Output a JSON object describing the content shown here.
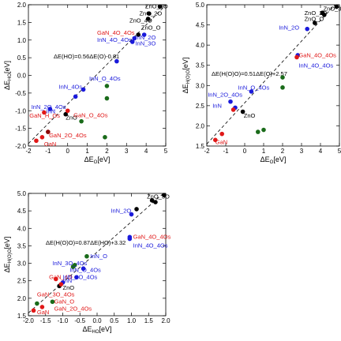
{
  "chart_data": [
    {
      "type": "scatter",
      "xlabel": "ΔE",
      "xlabel_sub": "O",
      "xlabel_unit": "[eV]",
      "ylabel": "ΔE",
      "ylabel_sub": "HO",
      "ylabel_unit": "[eV]",
      "xlim": [
        -2,
        5
      ],
      "ylim": [
        -2.0,
        2.0
      ],
      "xticks": [
        "-2",
        "-1",
        "0",
        "1",
        "2",
        "3",
        "4",
        "5"
      ],
      "yticks": [
        "-2.0",
        "-1.5",
        "-1.0",
        "-0.5",
        "0.0",
        "0.5",
        "1.0",
        "1.5",
        "2.0"
      ],
      "xtick_values": [
        -2,
        -1,
        0,
        1,
        2,
        3,
        4,
        5
      ],
      "ytick_values": [
        -2.0,
        -1.5,
        -1.0,
        -0.5,
        0.0,
        0.5,
        1.0,
        1.5,
        2.0
      ],
      "grid": false,
      "fit": {
        "slope": 0.56,
        "intercept": -0.81,
        "label": "ΔE(HO)=0.56ΔE(O)-0.81"
      },
      "points": [
        {
          "x": 4.7,
          "y": 1.95,
          "c": "#000000"
        },
        {
          "x": 4.1,
          "y": 1.6,
          "c": "#000000"
        },
        {
          "x": 4.15,
          "y": 1.75,
          "c": "#000000"
        },
        {
          "x": 3.6,
          "y": 1.15,
          "c": "#000000"
        },
        {
          "x": -0.1,
          "y": -1.1,
          "c": "#000000"
        },
        {
          "x": 3.3,
          "y": 0.95,
          "c": "#1a1adb"
        },
        {
          "x": 3.4,
          "y": 1.05,
          "c": "#1a1adb"
        },
        {
          "x": 3.9,
          "y": 1.15,
          "c": "#1a1adb"
        },
        {
          "x": 2.5,
          "y": 0.4,
          "c": "#1a1adb"
        },
        {
          "x": 0.8,
          "y": -0.4,
          "c": "#1a1adb"
        },
        {
          "x": 0.4,
          "y": -0.6,
          "c": "#1a1adb"
        },
        {
          "x": -0.9,
          "y": -0.95,
          "c": "#1a1adb"
        },
        {
          "x": 2.0,
          "y": -0.3,
          "c": "#1a6b1a"
        },
        {
          "x": 2.0,
          "y": -0.65,
          "c": "#1a6b1a"
        },
        {
          "x": 0.7,
          "y": -1.3,
          "c": "#1a6b1a"
        },
        {
          "x": 1.9,
          "y": -1.75,
          "c": "#1a6b1a"
        },
        {
          "x": -1.2,
          "y": -1.05,
          "c": "#e01818"
        },
        {
          "x": 0.0,
          "y": -1.0,
          "c": "#e01818"
        },
        {
          "x": -1.3,
          "y": -1.75,
          "c": "#e01818"
        },
        {
          "x": -1.6,
          "y": -1.85,
          "c": "#e01818"
        },
        {
          "x": -1.0,
          "y": -1.6,
          "c": "#8b0000"
        }
      ],
      "labels": [
        {
          "text": "ZnO_3O",
          "x": 3.95,
          "y": 1.9,
          "c": "#000000"
        },
        {
          "x": 3.65,
          "y": 1.7,
          "text": "ZnO_2O",
          "c": "#000000"
        },
        {
          "x": 3.15,
          "y": 1.5,
          "text": "ZnO_4O",
          "c": "#000000"
        },
        {
          "x": 3.75,
          "y": 1.3,
          "text": "ZnO_O",
          "c": "#000000"
        },
        {
          "x": -0.1,
          "y": -1.25,
          "text": "ZnO",
          "c": "#000000"
        },
        {
          "x": 1.5,
          "y": 1.15,
          "text": "GaN_4O_4Os",
          "c": "#e01818"
        },
        {
          "x": 1.5,
          "y": 0.95,
          "text": "InN_4O_4Os",
          "c": "#1a1adb"
        },
        {
          "x": 3.45,
          "y": 1.02,
          "text": "InN_2O",
          "c": "#1a1adb"
        },
        {
          "x": 3.45,
          "y": 0.85,
          "text": "InN_3O",
          "c": "#1a1adb"
        },
        {
          "x": 1.1,
          "y": -0.15,
          "text": "InN_O_4Os",
          "c": "#1a1adb"
        },
        {
          "x": -0.45,
          "y": -0.38,
          "text": "InN_4Os",
          "c": "#1a1adb"
        },
        {
          "x": -1.85,
          "y": -0.95,
          "text": "InN_2O_4Os",
          "c": "#1a1adb"
        },
        {
          "x": -1.1,
          "y": -1.07,
          "text": "InN",
          "c": "#1a1adb"
        },
        {
          "x": -1.95,
          "y": -1.2,
          "text": "GaN_H_Os",
          "c": "#e01818"
        },
        {
          "x": 0.3,
          "y": -1.18,
          "text": "GaN_O_4Os",
          "c": "#e01818"
        },
        {
          "x": -0.95,
          "y": -1.75,
          "text": "GaN_2O_4Os",
          "c": "#e01818"
        },
        {
          "x": -1.2,
          "y": -2.0,
          "text": "GaN",
          "c": "#e01818"
        }
      ]
    },
    {
      "type": "scatter",
      "xlabel": "ΔE",
      "xlabel_sub": "O",
      "xlabel_unit": "[eV]",
      "ylabel": "ΔE",
      "ylabel_sub": "H(O)O",
      "ylabel_unit": "[eV]",
      "xlim": [
        -2,
        5
      ],
      "ylim": [
        1.5,
        5.0
      ],
      "xticks": [
        "-2",
        "-1",
        "0",
        "1",
        "2",
        "3",
        "4",
        "5"
      ],
      "yticks": [
        "1.5",
        "2.0",
        "2.5",
        "3.0",
        "3.5",
        "4.0",
        "4.5",
        "5.0"
      ],
      "xtick_values": [
        -2,
        -1,
        0,
        1,
        2,
        3,
        4,
        5
      ],
      "ytick_values": [
        1.5,
        2.0,
        2.5,
        3.0,
        3.5,
        4.0,
        4.5,
        5.0
      ],
      "grid": false,
      "fit": {
        "slope": 0.51,
        "intercept": 2.57,
        "label": "ΔE(H(O)O)=0.51ΔE(O)+2.57"
      },
      "points": [
        {
          "x": 4.85,
          "y": 4.95,
          "c": "#000000"
        },
        {
          "x": 4.1,
          "y": 4.8,
          "c": "#000000"
        },
        {
          "x": 4.2,
          "y": 4.75,
          "c": "#000000"
        },
        {
          "x": 3.7,
          "y": 4.55,
          "c": "#000000"
        },
        {
          "x": -0.1,
          "y": 2.35,
          "c": "#000000"
        },
        {
          "x": 3.3,
          "y": 4.4,
          "c": "#1a1adb"
        },
        {
          "x": 2.8,
          "y": 3.75,
          "c": "#1a1adb"
        },
        {
          "x": 0.35,
          "y": 2.85,
          "c": "#1a1adb"
        },
        {
          "x": -0.75,
          "y": 2.6,
          "c": "#1a1adb"
        },
        {
          "x": -0.5,
          "y": 2.45,
          "c": "#1a1adb"
        },
        {
          "x": 2.0,
          "y": 3.2,
          "c": "#1a6b1a"
        },
        {
          "x": 2.0,
          "y": 2.95,
          "c": "#1a6b1a"
        },
        {
          "x": 0.7,
          "y": 1.85,
          "c": "#1a6b1a"
        },
        {
          "x": 1.0,
          "y": 1.9,
          "c": "#1a6b1a"
        },
        {
          "x": 2.75,
          "y": 3.7,
          "c": "#e01818"
        },
        {
          "x": -1.2,
          "y": 1.8,
          "c": "#e01818"
        },
        {
          "x": -1.55,
          "y": 1.65,
          "c": "#e01818"
        },
        {
          "x": -0.6,
          "y": 2.4,
          "c": "#e01818"
        }
      ],
      "labels": [
        {
          "x": 4.15,
          "y": 4.85,
          "text": "ZnO_3O",
          "c": "#000000"
        },
        {
          "x": 3.15,
          "y": 4.75,
          "text": "ZnO_2O",
          "c": "#000000"
        },
        {
          "x": 3.15,
          "y": 4.6,
          "text": "ZnO_O",
          "c": "#000000"
        },
        {
          "x": 1.8,
          "y": 4.38,
          "text": "InN_2O",
          "c": "#1a1adb"
        },
        {
          "x": -0.05,
          "y": 2.2,
          "text": "ZnO",
          "c": "#000000"
        },
        {
          "x": 2.85,
          "y": 3.7,
          "text": "GaN_4O_4Os",
          "c": "#e01818"
        },
        {
          "x": 2.85,
          "y": 3.45,
          "text": "InN_4O_4Os",
          "c": "#1a1adb"
        },
        {
          "x": -0.35,
          "y": 2.9,
          "text": "InN_O_4Os",
          "c": "#1a1adb"
        },
        {
          "x": -1.95,
          "y": 2.72,
          "text": "InN_2O_4Os",
          "c": "#1a1adb"
        },
        {
          "x": -1.7,
          "y": 2.45,
          "text": "InN",
          "c": "#1a1adb"
        },
        {
          "x": -1.55,
          "y": 1.55,
          "text": "GaN",
          "c": "#e01818"
        }
      ]
    },
    {
      "type": "scatter",
      "xlabel": "ΔE",
      "xlabel_sub": "HO",
      "xlabel_unit": "[eV]",
      "ylabel": "ΔE",
      "ylabel_sub": "H(O)O",
      "ylabel_unit": "[eV]",
      "xlim": [
        -2.0,
        2.0
      ],
      "ylim": [
        1.5,
        5.0
      ],
      "xticks": [
        "-2.0",
        "-1.5",
        "-1.0",
        "-0.5",
        "0.0",
        "0.5",
        "1.0",
        "1.5",
        "2.0"
      ],
      "yticks": [
        "1.5",
        "2.0",
        "2.5",
        "3.0",
        "3.5",
        "4.0",
        "4.5",
        "5.0"
      ],
      "xtick_values": [
        -2.0,
        -1.5,
        -1.0,
        -0.5,
        0.0,
        0.5,
        1.0,
        1.5,
        2.0
      ],
      "ytick_values": [
        1.5,
        2.0,
        2.5,
        3.0,
        3.5,
        4.0,
        4.5,
        5.0
      ],
      "grid": false,
      "fit": {
        "slope": 0.87,
        "intercept": 3.32,
        "label": "ΔE(H(O)O)=0.87ΔE(HO)+3.32"
      },
      "points": [
        {
          "x": 1.95,
          "y": 4.95,
          "c": "#000000"
        },
        {
          "x": 1.6,
          "y": 4.8,
          "c": "#000000"
        },
        {
          "x": 1.7,
          "y": 4.75,
          "c": "#000000"
        },
        {
          "x": 1.15,
          "y": 4.55,
          "c": "#000000"
        },
        {
          "x": -1.1,
          "y": 2.35,
          "c": "#000000"
        },
        {
          "x": 1.0,
          "y": 4.4,
          "c": "#1a1adb"
        },
        {
          "x": 0.95,
          "y": 3.75,
          "c": "#1a1adb"
        },
        {
          "x": 0.95,
          "y": 3.7,
          "c": "#1a1adb"
        },
        {
          "x": -0.4,
          "y": 2.85,
          "c": "#1a1adb"
        },
        {
          "x": -0.6,
          "y": 2.6,
          "c": "#1a1adb"
        },
        {
          "x": -1.0,
          "y": 2.45,
          "c": "#1a1adb"
        },
        {
          "x": -0.3,
          "y": 3.2,
          "c": "#1a6b1a"
        },
        {
          "x": -0.65,
          "y": 2.95,
          "c": "#1a6b1a"
        },
        {
          "x": -0.7,
          "y": 2.9,
          "c": "#1a6b1a"
        },
        {
          "x": -1.3,
          "y": 1.9,
          "c": "#1a6b1a"
        },
        {
          "x": -1.75,
          "y": 1.85,
          "c": "#1a6b1a"
        },
        {
          "x": -1.05,
          "y": 2.4,
          "c": "#e01818"
        },
        {
          "x": -1.2,
          "y": 2.55,
          "c": "#e01818"
        },
        {
          "x": -1.6,
          "y": 1.75,
          "c": "#e01818"
        },
        {
          "x": -1.85,
          "y": 1.65,
          "c": "#e01818"
        }
      ],
      "labels": [
        {
          "x": 1.45,
          "y": 4.85,
          "text": "ZnO_3O",
          "c": "#000000"
        },
        {
          "x": 0.4,
          "y": 4.45,
          "text": "InN_2O",
          "c": "#1a1adb"
        },
        {
          "x": 1.05,
          "y": 3.7,
          "text": "GaN_4O_4Os",
          "c": "#e01818"
        },
        {
          "x": 1.05,
          "y": 3.45,
          "text": "InN_4O_4Os",
          "c": "#1a1adb"
        },
        {
          "x": -0.2,
          "y": 3.15,
          "text": "InN_O",
          "c": "#1a1adb"
        },
        {
          "x": -1.3,
          "y": 2.95,
          "text": "InN_3O_4Os",
          "c": "#1a1adb"
        },
        {
          "x": -0.8,
          "y": 2.75,
          "text": "InN_O_4Os",
          "c": "#1a1adb"
        },
        {
          "x": -1.4,
          "y": 2.55,
          "text": "GaN_4O",
          "c": "#e01818"
        },
        {
          "x": -1.0,
          "y": 2.55,
          "text": "InN_2O_4Os",
          "c": "#1a1adb"
        },
        {
          "x": -1.0,
          "y": 2.45,
          "text": "InN",
          "c": "#1a1adb"
        },
        {
          "x": -1.0,
          "y": 2.25,
          "text": "ZnO",
          "c": "#000000"
        },
        {
          "x": -1.75,
          "y": 2.05,
          "text": "GaN_3O_4Os",
          "c": "#e01818"
        },
        {
          "x": -1.25,
          "y": 1.85,
          "text": "GaN_O",
          "c": "#e01818"
        },
        {
          "x": -1.25,
          "y": 1.65,
          "text": "GaN_2O_4Os",
          "c": "#e01818"
        },
        {
          "x": -1.75,
          "y": 1.55,
          "text": "GaN",
          "c": "#e01818"
        }
      ]
    }
  ]
}
